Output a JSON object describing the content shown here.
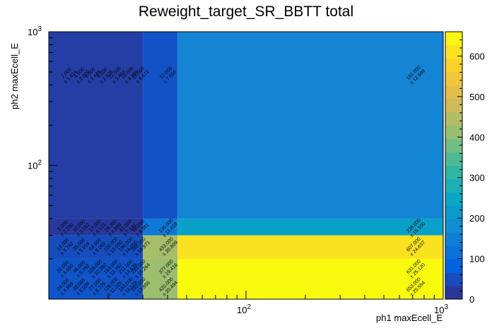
{
  "chart_data": {
    "type": "heatmap",
    "title": "Reweight_target_SR_BBTT total",
    "xlabel": "ph1 maxEcell_E",
    "ylabel": "ph2 maxEcell_E",
    "xscale": "log",
    "yscale": "log",
    "xlim": [
      10,
      1000
    ],
    "ylim": [
      10,
      1000
    ],
    "x_edges": [
      10,
      30,
      45,
      1000
    ],
    "y_edges": [
      10,
      20,
      30,
      40,
      1000
    ],
    "x_tick_labels": [
      {
        "value": 100,
        "label": "10",
        "exp": "2"
      },
      {
        "value": 1000,
        "label": "10",
        "exp": "3"
      }
    ],
    "y_tick_labels": [
      {
        "value": 100,
        "label": "10",
        "exp": "2"
      },
      {
        "value": 1000,
        "label": "10",
        "exp": "3"
      }
    ],
    "cells": [
      {
        "xi": 0,
        "yi": 3,
        "value": 28
      },
      {
        "xi": 1,
        "yi": 3,
        "value": 57
      },
      {
        "xi": 2,
        "yi": 3,
        "value": 161
      },
      {
        "xi": 0,
        "yi": 2,
        "value": 20
      },
      {
        "xi": 1,
        "yi": 2,
        "value": 135
      },
      {
        "xi": 2,
        "yi": 2,
        "value": 228
      },
      {
        "xi": 0,
        "yi": 1,
        "value": 50
      },
      {
        "xi": 1,
        "yi": 1,
        "value": 433
      },
      {
        "xi": 2,
        "yi": 1,
        "value": 607
      },
      {
        "xi": 0,
        "yi": 0,
        "value": 60
      },
      {
        "xi": 1,
        "yi": 0,
        "value": 420
      },
      {
        "xi": 2,
        "yi": 0,
        "value": 653
      }
    ],
    "cell_labels": [
      {
        "x": 720,
        "y": 480,
        "value": "161.000",
        "error": "± 12.689"
      },
      {
        "x": 720,
        "y": 34.5,
        "value": "228.000",
        "error": "± 15.100"
      },
      {
        "x": 720,
        "y": 25,
        "value": "607.000",
        "error": "± 24.637"
      },
      {
        "x": 720,
        "y": 17,
        "value": "631.000",
        "error": "± 25.120"
      },
      {
        "x": 720,
        "y": 12.5,
        "value": "653.000",
        "error": "± 25.554"
      },
      {
        "x": 40,
        "y": 480,
        "value": "57.000",
        "error": "± 7.550"
      },
      {
        "x": 40,
        "y": 34.5,
        "value": "135.000",
        "error": "± 11.619"
      },
      {
        "x": 40,
        "y": 25,
        "value": "433.000",
        "error": "± 20.809"
      },
      {
        "x": 40,
        "y": 17,
        "value": "377.000",
        "error": "± 19.416"
      },
      {
        "x": 40,
        "y": 12.5,
        "value": "420.000",
        "error": "± 20.494"
      },
      {
        "x": 12.5,
        "y": 480,
        "value": "2.000",
        "error": "± 1.414"
      },
      {
        "x": 14.5,
        "y": 480,
        "value": "4.000",
        "error": "± 2.000"
      },
      {
        "x": 16.5,
        "y": 480,
        "value": "6.000",
        "error": "± 2.449"
      },
      {
        "x": 19,
        "y": 480,
        "value": "8.000",
        "error": "± 2.828"
      },
      {
        "x": 22,
        "y": 480,
        "value": "12.000",
        "error": "± 3.464"
      },
      {
        "x": 25.5,
        "y": 480,
        "value": "19.000",
        "error": "± 4.359"
      },
      {
        "x": 29,
        "y": 480,
        "value": "20.000",
        "error": "± 4.472"
      },
      {
        "x": 12,
        "y": 34.5,
        "value": "5.000",
        "error": "± 2.236"
      },
      {
        "x": 14.5,
        "y": 34.5,
        "value": "10.000",
        "error": "± 3.162"
      },
      {
        "x": 17.5,
        "y": 34.5,
        "value": "17.000",
        "error": "± 4.123"
      },
      {
        "x": 21,
        "y": 34.5,
        "value": "24.000",
        "error": "± 4.899"
      },
      {
        "x": 25,
        "y": 34.5,
        "value": "51.000",
        "error": "± 7.141"
      },
      {
        "x": 29,
        "y": 34.5,
        "value": "88.000",
        "error": "± 9.381"
      },
      {
        "x": 12,
        "y": 25,
        "value": "14.000",
        "error": "± 3.742"
      },
      {
        "x": 14.5,
        "y": 25,
        "value": "35.000",
        "error": "± 5.916"
      },
      {
        "x": 17.5,
        "y": 25,
        "value": "64.000",
        "error": "± 8.000"
      },
      {
        "x": 21,
        "y": 25,
        "value": "100.000",
        "error": "± 10.000"
      },
      {
        "x": 25,
        "y": 25,
        "value": "196.000",
        "error": "± 14.000"
      },
      {
        "x": 29,
        "y": 25,
        "value": "288.000",
        "error": "± 16.971"
      },
      {
        "x": 12,
        "y": 17,
        "value": "22.000",
        "error": "± 4.690"
      },
      {
        "x": 14.5,
        "y": 17,
        "value": "46.000",
        "error": "± 6.782"
      },
      {
        "x": 17.5,
        "y": 17,
        "value": "108.000",
        "error": "± 10.392"
      },
      {
        "x": 21,
        "y": 17,
        "value": "163.000",
        "error": "± 12.767"
      },
      {
        "x": 25,
        "y": 17,
        "value": "211.000",
        "error": "± 14.526"
      },
      {
        "x": 29,
        "y": 17,
        "value": "233.000",
        "error": "± 15.264"
      },
      {
        "x": 12,
        "y": 12.5,
        "value": "24.000",
        "error": "± 4.899"
      },
      {
        "x": 14.5,
        "y": 12.5,
        "value": "48.000",
        "error": "± 6.928"
      },
      {
        "x": 17.5,
        "y": 12.5,
        "value": "77.000",
        "error": "± 8.775"
      },
      {
        "x": 21,
        "y": 12.5,
        "value": "126.000",
        "error": "± 11.225"
      },
      {
        "x": 25,
        "y": 12.5,
        "value": "183.000",
        "error": "± 13.528"
      },
      {
        "x": 29,
        "y": 12.5,
        "value": "192.000",
        "error": "± 13.856"
      }
    ],
    "colorbar": {
      "min": 0,
      "max": 653,
      "ticks": [
        0,
        100,
        200,
        300,
        400,
        500,
        600
      ],
      "palette": [
        "#352a87",
        "#0363e1",
        "#1485d4",
        "#06a7c6",
        "#38b99e",
        "#92bf73",
        "#d9ba56",
        "#fcce2e",
        "#f9fb0e"
      ]
    }
  }
}
